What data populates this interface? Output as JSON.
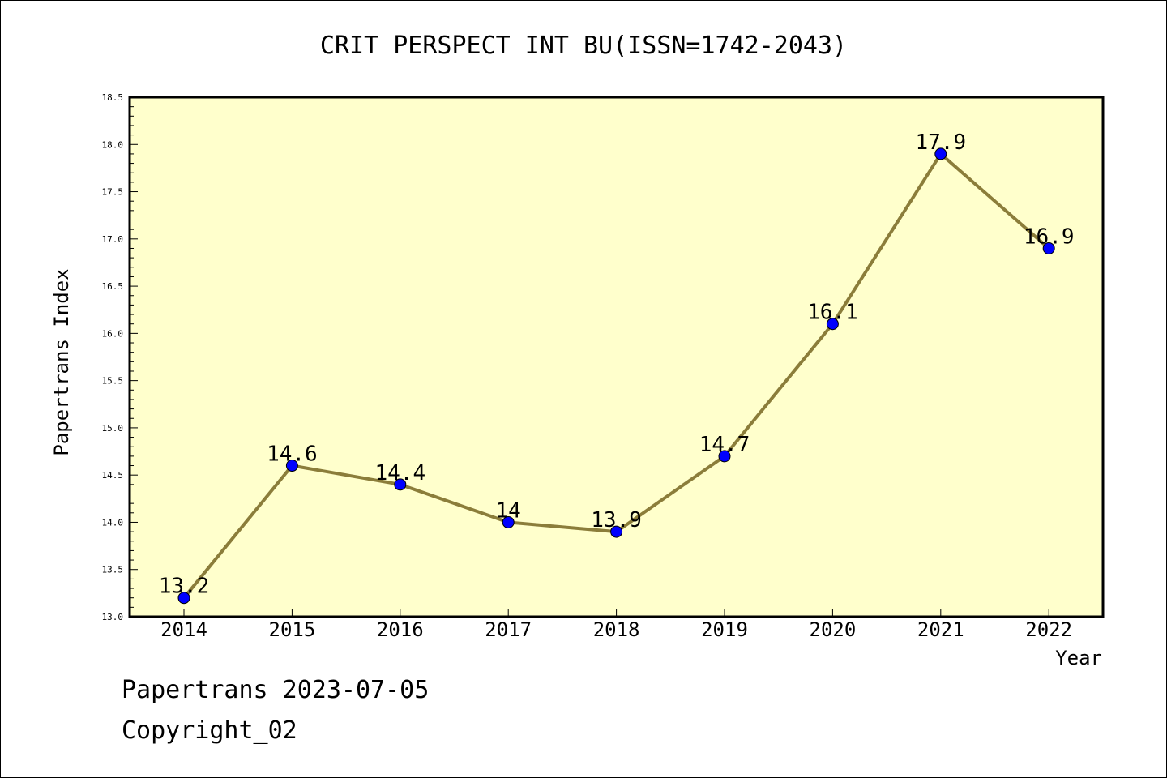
{
  "chart_data": {
    "type": "line",
    "title": "CRIT PERSPECT INT BU(ISSN=1742-2043)",
    "xlabel": "Year",
    "ylabel": "Papertrans Index",
    "categories": [
      "2014",
      "2015",
      "2016",
      "2017",
      "2018",
      "2019",
      "2020",
      "2021",
      "2022"
    ],
    "values": [
      13.2,
      14.6,
      14.4,
      14,
      13.9,
      14.7,
      16.1,
      17.9,
      16.9
    ],
    "data_labels": [
      "13.2",
      "14.6",
      "14.4",
      "14",
      "13.9",
      "14.7",
      "16.1",
      "17.9",
      "16.9"
    ],
    "ylim": [
      13.0,
      18.5
    ],
    "yticks": [
      "13.0",
      "13.5",
      "14.0",
      "14.5",
      "15.0",
      "15.5",
      "16.0",
      "16.5",
      "17.0",
      "17.5",
      "18.0",
      "18.5"
    ],
    "grid": false,
    "colors": {
      "plot_background": "#ffffcc",
      "line": "#8b7d3a",
      "marker": "#0000ff"
    }
  },
  "footer": {
    "line1": "Papertrans 2023-07-05",
    "line2": "Copyright_02"
  }
}
